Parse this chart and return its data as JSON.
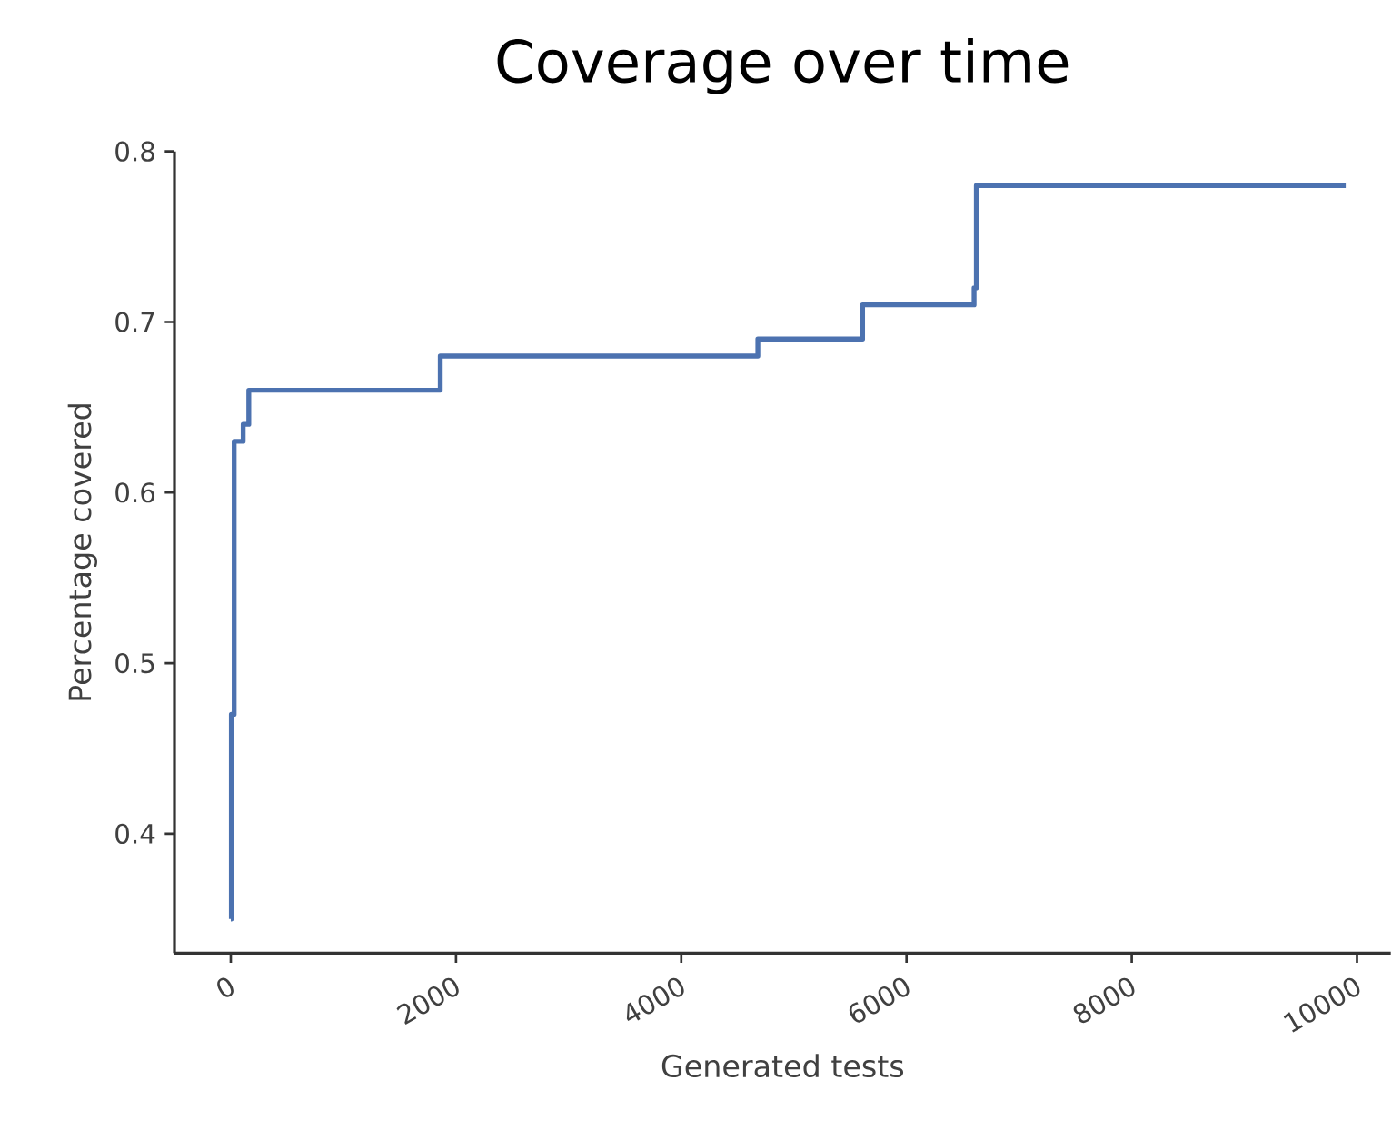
{
  "chart_data": {
    "type": "step",
    "title": "Coverage over time",
    "xlabel": "Generated tests",
    "ylabel": "Percentage covered",
    "x": [
      0,
      5,
      30,
      110,
      160,
      1860,
      4680,
      5610,
      6600,
      6620,
      9900
    ],
    "series": [
      {
        "color": "#4c72b0",
        "values": [
          0.35,
          0.47,
          0.63,
          0.64,
          0.66,
          0.68,
          0.69,
          0.71,
          0.72,
          0.78,
          0.78
        ]
      }
    ],
    "xlim": [
      -500,
      10300
    ],
    "ylim": [
      0.33,
      0.8
    ],
    "xticks": [
      0,
      2000,
      4000,
      6000,
      8000,
      10000
    ],
    "yticks": [
      0.4,
      0.5,
      0.6,
      0.7,
      0.8
    ],
    "marker": "none",
    "line_style": "solid"
  }
}
